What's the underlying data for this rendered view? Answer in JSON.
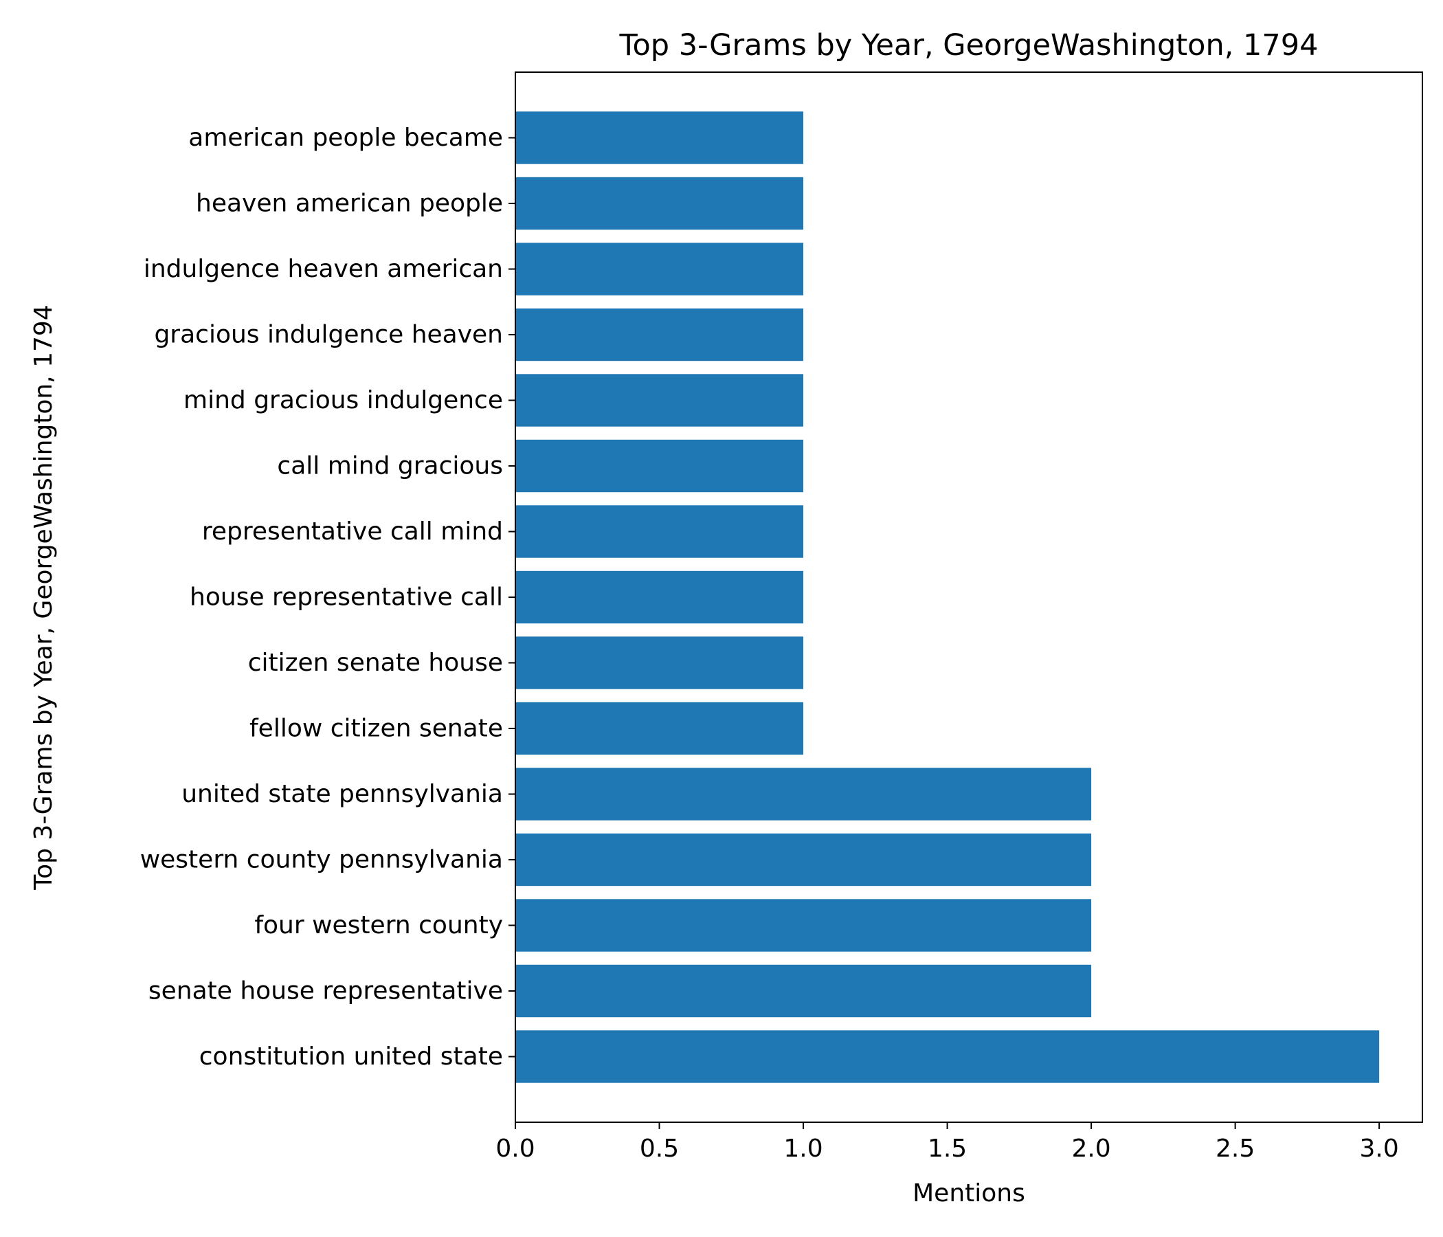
{
  "chart_data": {
    "type": "bar",
    "orientation": "horizontal",
    "title": "Top 3-Grams by Year, GeorgeWashington, 1794",
    "xlabel": "Mentions",
    "ylabel": "Top 3-Grams by Year, GeorgeWashington, 1794",
    "xlim": [
      0,
      3.15
    ],
    "xticks": [
      "0.0",
      "0.5",
      "1.0",
      "1.5",
      "2.0",
      "2.5",
      "3.0"
    ],
    "grid": false,
    "legend": "none",
    "bar_color": "#1f77b4",
    "categories": [
      "american people became",
      "heaven american people",
      "indulgence heaven american",
      "gracious indulgence heaven",
      "mind gracious indulgence",
      "call mind gracious",
      "representative call mind",
      "house representative call",
      "citizen senate house",
      "fellow citizen senate",
      "united state pennsylvania",
      "western county pennsylvania",
      "four western county",
      "senate house representative",
      "constitution united state"
    ],
    "values": [
      1,
      1,
      1,
      1,
      1,
      1,
      1,
      1,
      1,
      1,
      2,
      2,
      2,
      2,
      3
    ]
  }
}
